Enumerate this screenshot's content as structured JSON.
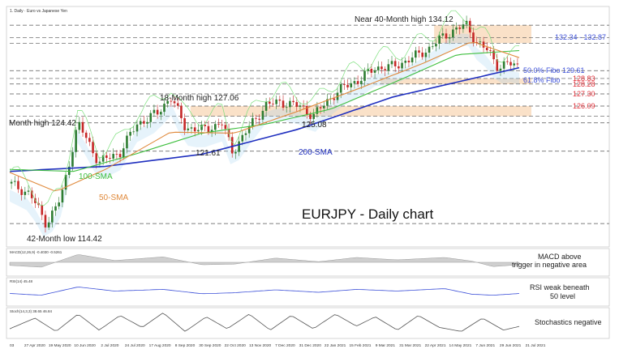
{
  "header": {
    "symbol_line": "1. Daily · Euro vs Japanese Yen",
    "macd_params": "MACD(12,26,9) -0.4030 -0.5261",
    "rsi_params": "RSI(14) 45.48",
    "stoch_params": "Stoch(14,3,3) 38.65 46.84"
  },
  "annotations": {
    "near_high": "Near 40-Month high 134.12",
    "month18_high": "18-Month high 127.06",
    "month_high": "Month high 124.42",
    "low_121": "121.61",
    "low_125": "125.08",
    "low_42m": "42-Month low 114.42",
    "sma200": "200-SMA",
    "sma100": "100-SMA",
    "sma50": "50-SMA",
    "chart_title": "EURJPY - Daily chart",
    "zone_top": "132.34 - 132.87",
    "fibo50": "50.0% Fibo 129.61",
    "fibo618": "61.8% Fibo",
    "macd_note": "MACD above\ntrigger in negative area",
    "rsi_note": "RSI weak beneath\n50 level",
    "stoch_note": "Stochastics negative"
  },
  "colors": {
    "price_up": "#2e7d32",
    "price_down": "#c62828",
    "sma200": "#1f2fbf",
    "sma100": "#3fbf3f",
    "sma50": "#e08a3c",
    "fast_line": "#2f6bd6",
    "zone": "#f5c89a",
    "cloud": "#9ad0f0",
    "label_blue": "#3b4fd8",
    "label_red": "#e0313a"
  },
  "chart_data": [
    {
      "type": "line",
      "title": "EURJPY - Daily chart",
      "x_start": "2020-04-01",
      "x_end": "2021-07-30",
      "xticks": [
        "03",
        "27 Apr 2020",
        "19 May 2020",
        "10 Jun 2020",
        "2 Jul 2020",
        "24 Jul 2020",
        "17 Aug 2020",
        "8 Sep 2020",
        "30 Sep 2020",
        "22 Oct 2020",
        "13 Nov 2020",
        "7 Dec 2020",
        "31 Dec 2020",
        "22 Jan 2021",
        "15 Feb 2021",
        "9 Mar 2021",
        "31 Mar 2021",
        "22 Apr 2021",
        "14 May 2021",
        "7 Jun 2021",
        "29 Jun 2021",
        "21 Jul 2021"
      ],
      "ylim": [
        112.5,
        135.5
      ],
      "series": [
        {
          "name": "EURJPY",
          "x": [
            "2020-04-01",
            "2020-04-20",
            "2020-05-06",
            "2020-05-20",
            "2020-06-05",
            "2020-06-25",
            "2020-07-15",
            "2020-07-31",
            "2020-08-20",
            "2020-09-01",
            "2020-09-15",
            "2020-10-01",
            "2020-10-20",
            "2020-10-30",
            "2020-11-15",
            "2020-12-01",
            "2020-12-15",
            "2021-01-04",
            "2021-01-15",
            "2021-02-01",
            "2021-02-15",
            "2021-03-01",
            "2021-03-15",
            "2021-04-01",
            "2021-04-20",
            "2021-05-05",
            "2021-05-20",
            "2021-06-01",
            "2021-06-10",
            "2021-06-20",
            "2021-07-01",
            "2021-07-10",
            "2021-07-20",
            "2021-07-30"
          ],
          "values": [
            118.4,
            117.4,
            114.4,
            117.0,
            124.4,
            120.5,
            121.5,
            124.3,
            125.4,
            127.06,
            124.0,
            123.7,
            124.4,
            121.6,
            124.0,
            126.2,
            126.5,
            126.0,
            125.1,
            127.0,
            128.1,
            128.8,
            129.9,
            130.0,
            130.9,
            131.8,
            133.1,
            133.8,
            134.12,
            132.4,
            131.5,
            130.0,
            130.3,
            130.0
          ]
        },
        {
          "name": "200-SMA",
          "x": [
            "2020-04-01",
            "2020-07-01",
            "2020-10-01",
            "2021-01-01",
            "2021-04-01",
            "2021-07-30"
          ],
          "values": [
            119.6,
            120.1,
            121.3,
            123.8,
            127.0,
            129.9
          ]
        },
        {
          "name": "100-SMA",
          "x": [
            "2020-04-01",
            "2020-06-01",
            "2020-08-01",
            "2020-10-01",
            "2020-12-01",
            "2021-02-01",
            "2021-04-01",
            "2021-06-01",
            "2021-07-30"
          ],
          "values": [
            119.8,
            119.6,
            121.4,
            123.4,
            124.3,
            125.8,
            128.4,
            131.2,
            131.6
          ]
        },
        {
          "name": "50-SMA",
          "x": [
            "2020-04-01",
            "2020-05-15",
            "2020-07-01",
            "2020-09-01",
            "2020-11-01",
            "2021-01-01",
            "2021-03-01",
            "2021-05-01",
            "2021-06-15",
            "2021-07-30"
          ],
          "values": [
            119.5,
            117.6,
            119.8,
            123.5,
            123.4,
            125.6,
            127.9,
            130.4,
            132.5,
            130.9
          ]
        }
      ],
      "levels": [
        134.12,
        132.87,
        132.34,
        129.61,
        128.83,
        128.28,
        127.3,
        126.09,
        125.08,
        124.42,
        121.61,
        114.42
      ],
      "level_labels": [
        {
          "text": "128.83",
          "value": 128.83
        },
        {
          "text": "128.28",
          "value": 128.28
        },
        {
          "text": "127.30",
          "value": 127.3
        },
        {
          "text": "126.09",
          "value": 126.09
        }
      ],
      "zones": [
        [
          132.34,
          134.12
        ],
        [
          128.28,
          128.83
        ],
        [
          125.08,
          126.09
        ]
      ]
    },
    {
      "type": "line",
      "title": "MACD",
      "ylim": [
        -2,
        2
      ],
      "series": [
        {
          "name": "MACD",
          "x": [
            "2020-04-01",
            "2020-05-01",
            "2020-06-05",
            "2020-07-10",
            "2020-08-25",
            "2020-10-01",
            "2020-11-01",
            "2020-12-10",
            "2021-01-20",
            "2021-02-25",
            "2021-04-05",
            "2021-05-20",
            "2021-06-15",
            "2021-07-05",
            "2021-07-30"
          ],
          "values": [
            -0.5,
            -0.8,
            1.3,
            0.3,
            0.9,
            -0.4,
            -0.3,
            0.7,
            0.1,
            0.8,
            0.4,
            0.8,
            0.2,
            -0.7,
            -0.4
          ]
        }
      ]
    },
    {
      "type": "line",
      "title": "RSI",
      "ylim": [
        0,
        100
      ],
      "series": [
        {
          "name": "RSI",
          "x": [
            "2020-04-01",
            "2020-05-01",
            "2020-06-05",
            "2020-07-10",
            "2020-08-25",
            "2020-10-01",
            "2020-11-01",
            "2020-12-10",
            "2021-01-20",
            "2021-02-25",
            "2021-04-05",
            "2021-05-20",
            "2021-06-15",
            "2021-07-05",
            "2021-07-30"
          ],
          "values": [
            45,
            38,
            72,
            55,
            62,
            44,
            48,
            60,
            50,
            62,
            55,
            65,
            42,
            38,
            45
          ]
        }
      ]
    },
    {
      "type": "line",
      "title": "Stochastics",
      "ylim": [
        0,
        100
      ],
      "series": [
        {
          "name": "%K",
          "x": [
            "2020-04-01",
            "2020-04-25",
            "2020-05-15",
            "2020-06-05",
            "2020-06-25",
            "2020-07-15",
            "2020-08-05",
            "2020-08-25",
            "2020-09-15",
            "2020-10-05",
            "2020-10-25",
            "2020-11-15",
            "2020-12-05",
            "2020-12-25",
            "2021-01-15",
            "2021-02-05",
            "2021-02-25",
            "2021-03-15",
            "2021-04-05",
            "2021-04-25",
            "2021-05-15",
            "2021-06-05",
            "2021-06-25",
            "2021-07-15",
            "2021-07-30"
          ],
          "values": [
            30,
            70,
            20,
            85,
            25,
            80,
            35,
            90,
            20,
            75,
            30,
            85,
            25,
            80,
            30,
            85,
            40,
            75,
            25,
            80,
            35,
            20,
            70,
            25,
            39
          ]
        }
      ]
    }
  ]
}
